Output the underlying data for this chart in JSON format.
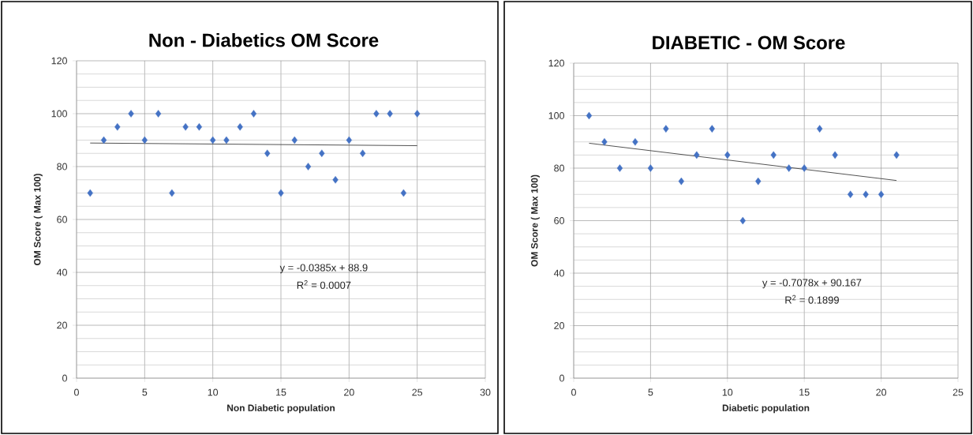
{
  "chart_data": [
    {
      "type": "scatter",
      "title": "Non - Diabetics OM Score",
      "xlabel": "Non Diabetic population",
      "ylabel": "OM Score ( Max 100)",
      "xlim": [
        0,
        30
      ],
      "ylim": [
        0,
        120
      ],
      "xticks": [
        0,
        5,
        10,
        15,
        20,
        25,
        30
      ],
      "yticks": [
        0,
        20,
        40,
        60,
        80,
        100,
        120
      ],
      "grid": true,
      "annotations": [
        "y = -0.0385x + 88.9",
        "R$^{2}$ = 0.0007"
      ],
      "series": [
        {
          "marker": "diamond",
          "color": "#4472c4",
          "x": [
            1,
            2,
            3,
            4,
            5,
            6,
            7,
            8,
            9,
            10,
            11,
            12,
            13,
            14,
            15,
            16,
            17,
            18,
            19,
            20,
            21,
            22,
            23,
            24,
            25
          ],
          "values": [
            70,
            90,
            95,
            100,
            90,
            100,
            70,
            95,
            95,
            90,
            90,
            95,
            100,
            85,
            70,
            90,
            80,
            85,
            75,
            90,
            85,
            100,
            100,
            70,
            100
          ]
        },
        {
          "type": "line",
          "marker": "none",
          "color": "#404040",
          "x": [
            1,
            25
          ],
          "values": [
            88.9,
            87.9
          ]
        }
      ]
    },
    {
      "type": "scatter",
      "title": "DIABETIC - OM Score",
      "xlabel": "Diabetic population",
      "ylabel": "OM Score ( Max 100)",
      "xlim": [
        0,
        25
      ],
      "ylim": [
        0,
        120
      ],
      "xticks": [
        0,
        5,
        10,
        15,
        20,
        25
      ],
      "yticks": [
        0,
        20,
        40,
        60,
        80,
        100,
        120
      ],
      "grid": true,
      "annotations": [
        "y = -0.7078x + 90.167",
        "R$^{2}$ = 0.1899"
      ],
      "series": [
        {
          "marker": "diamond",
          "color": "#4472c4",
          "x": [
            1,
            2,
            3,
            4,
            5,
            6,
            7,
            8,
            9,
            10,
            11,
            12,
            13,
            14,
            15,
            16,
            17,
            18,
            19,
            20,
            21
          ],
          "values": [
            100,
            90,
            80,
            90,
            80,
            95,
            75,
            85,
            95,
            85,
            60,
            75,
            85,
            80,
            80,
            95,
            85,
            70,
            70,
            70,
            85
          ]
        },
        {
          "type": "line",
          "marker": "none",
          "color": "#404040",
          "x": [
            1,
            21
          ],
          "values": [
            89.5,
            75.3
          ]
        }
      ]
    }
  ]
}
